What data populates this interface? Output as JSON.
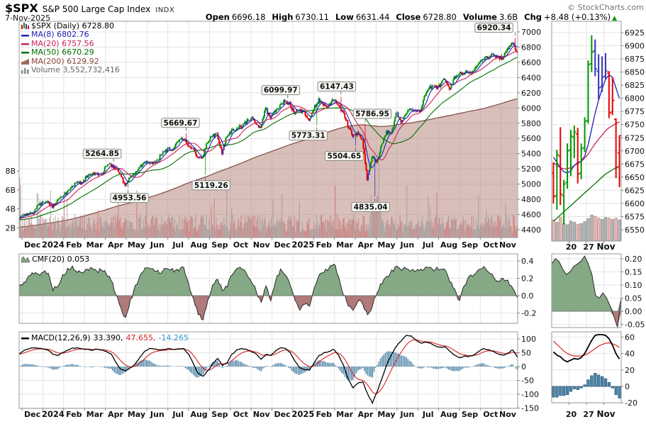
{
  "header": {
    "symbol": "$SPX",
    "name": "S&P 500 Large Cap Index",
    "exchange": "INDX",
    "date": "7-Nov-2025",
    "copyright": "© StockCharts.com",
    "quote": {
      "open_label": "Open",
      "open": "6696.18",
      "high_label": "High",
      "high": "6730.11",
      "low_label": "Low",
      "low": "6631.44",
      "close_label": "Close",
      "close": "6728.80",
      "volume_label": "Volume",
      "volume": "3.6B",
      "chg_label": "Chg",
      "chg": "+8.48 (+0.13%)",
      "chg_direction": "up",
      "chg_triangle": "▲"
    }
  },
  "legend": {
    "main": [
      {
        "label": "$SPX (Daily) 6728.80",
        "color": "#000000",
        "icon": "candlestick-icon"
      },
      {
        "label": "MA(8) 6802.76",
        "color": "#2020b8",
        "icon": "line-icon"
      },
      {
        "label": "MA(20) 6757.56",
        "color": "#cc2255",
        "icon": "line-icon"
      },
      {
        "label": "MA(50) 6670.29",
        "color": "#007000",
        "icon": "line-icon"
      },
      {
        "label": "MA(200) 6129.92",
        "color": "#8b4a3e",
        "icon": "area-icon"
      },
      {
        "label": "Volume 3,552,732,416",
        "color": "#666666",
        "icon": "volume-bars-icon"
      }
    ],
    "cmf": {
      "label": "CMF(20) 0.053",
      "color": "#000000"
    },
    "macd": {
      "label": "MACD(12,26,9)",
      "value1": "33.390,",
      "value2": "47.655,",
      "value3": "-14.265",
      "color1": "#000000",
      "color2": "#dd2222",
      "color3": "#3399cc"
    }
  },
  "colors": {
    "up": "#009600",
    "down": "#e60000",
    "neutral": "#3434b4",
    "ma8": "#2020b8",
    "ma20": "#cc2255",
    "ma50": "#007000",
    "ma200_fill": "#b5847a",
    "ma200_line": "#7d4b41",
    "vol_up": "#909090",
    "vol_down": "#cc7a7a",
    "cmf_pos": "#85a885",
    "cmf_neg": "#b07a7a",
    "cmf_outline": "#1a1a1a",
    "macd_line": "#000000",
    "macd_signal": "#dd2222",
    "macd_hist": "#4d84a8",
    "grid": "#e4e4e4",
    "axis_text": "#111111",
    "border": "#999999",
    "zoom_vol_up": "#b4b4b4",
    "zoom_vol_down": "#e6b8b8",
    "chg_up": "#009900"
  },
  "chart_data": [
    {
      "id": "price-main",
      "type": "candlestick",
      "title": "$SPX (Daily)",
      "ylim": [
        4300,
        7140
      ],
      "yticks": [
        7000,
        6800,
        6600,
        6400,
        6200,
        6000,
        5800,
        5600,
        5400,
        5200,
        5000,
        4800,
        4600,
        4400
      ],
      "volume_ticks": [
        {
          "label": "8B",
          "v": 8
        },
        {
          "label": "6B",
          "v": 6
        },
        {
          "label": "4B",
          "v": 4
        },
        {
          "label": "2B",
          "v": 2
        }
      ],
      "x_months": [
        "Dec",
        "2024",
        "Feb",
        "Mar",
        "Apr",
        "May",
        "Jun",
        "Jul",
        "Aug",
        "Sep",
        "Oct",
        "Nov",
        "Dec",
        "2025",
        "Feb",
        "Mar",
        "Apr",
        "May",
        "Jun",
        "Jul",
        "Aug",
        "Sep",
        "Oct",
        "Nov"
      ],
      "year_label_indices": [
        1,
        13
      ],
      "ma_periods": [
        8,
        20,
        50,
        200
      ],
      "weekly_closes": [
        4556,
        4594,
        4604,
        4622,
        4719,
        4754,
        4770,
        4697,
        4784,
        4840,
        4891,
        4959,
        5027,
        5006,
        5089,
        5137,
        5124,
        5117,
        5234,
        5254,
        5204,
        5123,
        4967,
        5100,
        5128,
        5223,
        5303,
        5267,
        5278,
        5347,
        5432,
        5465,
        5460,
        5567,
        5615,
        5505,
        5459,
        5346,
        5344,
        5554,
        5635,
        5648,
        5408,
        5626,
        5703,
        5738,
        5751,
        5815,
        5865,
        5808,
        5729,
        5996,
        5870,
        5969,
        6032,
        6090,
        6051,
        5930,
        5971,
        5942,
        5827,
        5996,
        6101,
        6041,
        6026,
        6115,
        6013,
        5955,
        5770,
        5639,
        5668,
        5581,
        5074,
        5363,
        5283,
        5525,
        5687,
        5660,
        5958,
        5803,
        5912,
        6000,
        5977,
        5968,
        6173,
        6279,
        6260,
        6297,
        6389,
        6238,
        6389,
        6450,
        6467,
        6460,
        6482,
        6584,
        6664,
        6644,
        6716,
        6654,
        6664,
        6792,
        6840,
        6729
      ],
      "annotations": [
        {
          "text": "5264.85",
          "week": 19,
          "price": 5264.85,
          "side": "above",
          "dx": -16
        },
        {
          "text": "4953.56",
          "week": 22,
          "price": 4953.56,
          "side": "below",
          "dx": 2
        },
        {
          "text": "5669.67",
          "week": 34,
          "price": 5669.67,
          "side": "above",
          "dx": -8
        },
        {
          "text": "5119.26",
          "week": 38,
          "price": 5119.26,
          "side": "below",
          "dx": 8
        },
        {
          "text": "6099.97",
          "week": 55,
          "price": 6099.97,
          "side": "above",
          "dx": -10
        },
        {
          "text": "5773.31",
          "week": 61,
          "price": 5773.31,
          "side": "below",
          "dx": -12
        },
        {
          "text": "6147.43",
          "week": 66,
          "price": 6147.43,
          "side": "above",
          "dx": -6
        },
        {
          "text": "5504.65",
          "week": 69,
          "price": 5504.65,
          "side": "below",
          "dx": -16
        },
        {
          "text": "5786.95",
          "week": 71,
          "price": 5786.95,
          "side": "above",
          "dx": 10
        },
        {
          "text": "4835.04",
          "week": 73,
          "price": 4835.04,
          "side": "below",
          "dx": -6
        },
        {
          "text": "6920.34",
          "week": 102,
          "price": 6920.34,
          "side": "above",
          "dx": -30
        }
      ]
    },
    {
      "id": "cmf-main",
      "type": "area",
      "label": "CMF(20)",
      "last_value": 0.053,
      "ylim": [
        -0.32,
        0.48
      ],
      "yticks": [
        {
          "label": "0.4",
          "v": 0.4
        },
        {
          "label": "0.2",
          "v": 0.2
        },
        {
          "label": "0.0",
          "v": 0.0
        },
        {
          "label": "-0.2",
          "v": -0.2
        }
      ],
      "weekly_values": [
        0.1,
        0.15,
        0.22,
        0.26,
        0.24,
        0.28,
        0.25,
        0.08,
        0.12,
        0.22,
        0.3,
        0.32,
        0.28,
        0.25,
        0.3,
        0.32,
        0.28,
        0.3,
        0.26,
        0.18,
        0.02,
        -0.14,
        -0.26,
        -0.06,
        0.1,
        0.22,
        0.3,
        0.33,
        0.3,
        0.27,
        0.3,
        0.32,
        0.28,
        0.3,
        0.32,
        0.15,
        -0.05,
        -0.2,
        -0.28,
        -0.05,
        0.12,
        0.2,
        0.05,
        0.12,
        0.26,
        0.32,
        0.3,
        0.26,
        0.18,
        0.05,
        -0.08,
        0.1,
        -0.05,
        0.18,
        0.3,
        0.25,
        0.12,
        -0.05,
        -0.15,
        -0.08,
        -0.12,
        0.1,
        0.24,
        0.28,
        0.32,
        0.38,
        0.22,
        0.02,
        -0.1,
        -0.18,
        -0.05,
        -0.1,
        -0.22,
        -0.12,
        0.05,
        0.15,
        0.22,
        0.28,
        0.34,
        0.3,
        0.32,
        0.3,
        0.27,
        0.3,
        0.33,
        0.32,
        0.3,
        0.32,
        0.28,
        0.18,
        0.06,
        -0.06,
        0.12,
        0.22,
        0.24,
        0.3,
        0.34,
        0.28,
        0.22,
        0.16,
        0.2,
        0.16,
        0.08,
        -0.03
      ]
    },
    {
      "id": "macd-main",
      "type": "line+histogram",
      "label": "MACD(12,26,9)",
      "values": [
        33.39,
        47.655,
        -14.265
      ],
      "ylim": [
        -175,
        125
      ],
      "yticks": [
        {
          "label": "100",
          "v": 100
        },
        {
          "label": "50",
          "v": 50
        },
        {
          "label": "0",
          "v": 0
        },
        {
          "label": "-50",
          "v": -50
        },
        {
          "label": "-100",
          "v": -100
        },
        {
          "label": "-150",
          "v": -150
        }
      ],
      "weekly_macd": [
        45,
        58,
        65,
        68,
        66,
        64,
        60,
        45,
        40,
        50,
        60,
        66,
        68,
        64,
        62,
        60,
        63,
        60,
        55,
        45,
        15,
        -10,
        -15,
        -5,
        10,
        35,
        55,
        65,
        64,
        60,
        63,
        65,
        62,
        63,
        65,
        45,
        10,
        -25,
        -36,
        -15,
        10,
        30,
        5,
        15,
        45,
        60,
        65,
        62,
        55,
        45,
        25,
        45,
        40,
        58,
        68,
        66,
        50,
        20,
        -5,
        -10,
        -12,
        15,
        40,
        50,
        55,
        62,
        40,
        5,
        -45,
        -77,
        -60,
        -55,
        -100,
        -132,
        -90,
        -40,
        10,
        45,
        75,
        95,
        114,
        110,
        95,
        85,
        88,
        85,
        75,
        70,
        72,
        55,
        40,
        32,
        38,
        36,
        42,
        55,
        65,
        60,
        55,
        45,
        40,
        50,
        60,
        33.4
      ]
    },
    {
      "id": "price-zoom",
      "type": "ohlc",
      "ylim": [
        6528,
        6946
      ],
      "yticks": [
        6925,
        6900,
        6875,
        6850,
        6825,
        6800,
        6775,
        6750,
        6725,
        6700,
        6675,
        6650,
        6625,
        6600,
        6575,
        6550
      ],
      "x_labels": [
        {
          "label": "20",
          "index": 5
        },
        {
          "label": "27",
          "index": 10
        },
        {
          "label": "Nov",
          "index": 15,
          "bold": true
        }
      ],
      "bars": [
        [
          6658,
          6678,
          6600,
          6613,
          "r"
        ],
        [
          6615,
          6702,
          6588,
          6693,
          "g"
        ],
        [
          6690,
          6745,
          6597,
          6618,
          "r"
        ],
        [
          6615,
          6645,
          6560,
          6637,
          "g"
        ],
        [
          6640,
          6714,
          6628,
          6700,
          "g"
        ],
        [
          6702,
          6740,
          6652,
          6728,
          "g"
        ],
        [
          6726,
          6748,
          6686,
          6736,
          "g"
        ],
        [
          6732,
          6744,
          6638,
          6656,
          "r"
        ],
        [
          6658,
          6714,
          6646,
          6704,
          "g"
        ],
        [
          6706,
          6764,
          6698,
          6756,
          "g"
        ],
        [
          6758,
          6872,
          6752,
          6864,
          "g"
        ],
        [
          6866,
          6920,
          6850,
          6888,
          "g"
        ],
        [
          6890,
          6912,
          6842,
          6856,
          "b"
        ],
        [
          6852,
          6884,
          6798,
          6820,
          "b"
        ],
        [
          6822,
          6880,
          6812,
          6840,
          "b"
        ],
        [
          6842,
          6886,
          6836,
          6852,
          "b"
        ],
        [
          6848,
          6852,
          6762,
          6772,
          "r"
        ],
        [
          6774,
          6840,
          6768,
          6796,
          "r"
        ],
        [
          6760,
          6762,
          6648,
          6668,
          "r"
        ],
        [
          6696,
          6730,
          6631,
          6729,
          "r"
        ]
      ],
      "ma8": [
        6688,
        6678,
        6668,
        6660,
        6658,
        6662,
        6672,
        6678,
        6680,
        6690,
        6712,
        6742,
        6772,
        6796,
        6818,
        6836,
        6845,
        6840,
        6820,
        6800
      ],
      "ma20": [
        6678,
        6672,
        6668,
        6666,
        6666,
        6668,
        6672,
        6676,
        6680,
        6686,
        6694,
        6704,
        6714,
        6722,
        6730,
        6738,
        6744,
        6748,
        6752,
        6755
      ],
      "ma50": [
        6566,
        6572,
        6578,
        6584,
        6590,
        6596,
        6602,
        6608,
        6614,
        6620,
        6626,
        6632,
        6638,
        6644,
        6650,
        6656,
        6660,
        6664,
        6668,
        6671
      ],
      "volume": [
        0.34,
        0.3,
        0.38,
        0.28,
        0.26,
        0.32,
        0.3,
        0.27,
        0.28,
        0.31,
        0.36,
        0.42,
        0.4,
        0.37,
        0.35,
        0.38,
        0.37,
        0.35,
        0.37,
        0.34
      ]
    },
    {
      "id": "cmf-zoom",
      "type": "area",
      "ylim": [
        -0.062,
        0.218
      ],
      "yticks": [
        {
          "label": "0.20",
          "v": 0.2
        },
        {
          "label": "0.15",
          "v": 0.15
        },
        {
          "label": "0.10",
          "v": 0.1
        },
        {
          "label": "0.05",
          "v": 0.05
        },
        {
          "label": "0.00",
          "v": 0.0
        },
        {
          "label": "-0.05",
          "v": -0.05
        }
      ],
      "values": [
        0.18,
        0.2,
        0.19,
        0.16,
        0.14,
        0.15,
        0.17,
        0.18,
        0.19,
        0.21,
        0.18,
        0.14,
        0.06,
        0.05,
        0.07,
        0.05,
        0.02,
        -0.02,
        -0.06,
        0.053
      ]
    },
    {
      "id": "macd-zoom",
      "type": "line+histogram",
      "ylim": [
        -26,
        66
      ],
      "yticks": [
        {
          "label": "60",
          "v": 60
        },
        {
          "label": "40",
          "v": 40
        },
        {
          "label": "20",
          "v": 20
        },
        {
          "label": "0",
          "v": 0
        },
        {
          "label": "-20",
          "v": -20
        }
      ],
      "x_labels": [
        {
          "label": "20",
          "index": 5
        },
        {
          "label": "27",
          "index": 10
        },
        {
          "label": "Nov",
          "index": 15,
          "bold": true
        }
      ],
      "macd": [
        42,
        38,
        36,
        32,
        30,
        32,
        34,
        33,
        35,
        40,
        48,
        56,
        62,
        63,
        63,
        62,
        58,
        50,
        40,
        33.39
      ],
      "signal": [
        55,
        51,
        47,
        43,
        40,
        38,
        37,
        37,
        37,
        38,
        40,
        43,
        46,
        49,
        51,
        52.5,
        53,
        52,
        50,
        47.655
      ]
    }
  ]
}
